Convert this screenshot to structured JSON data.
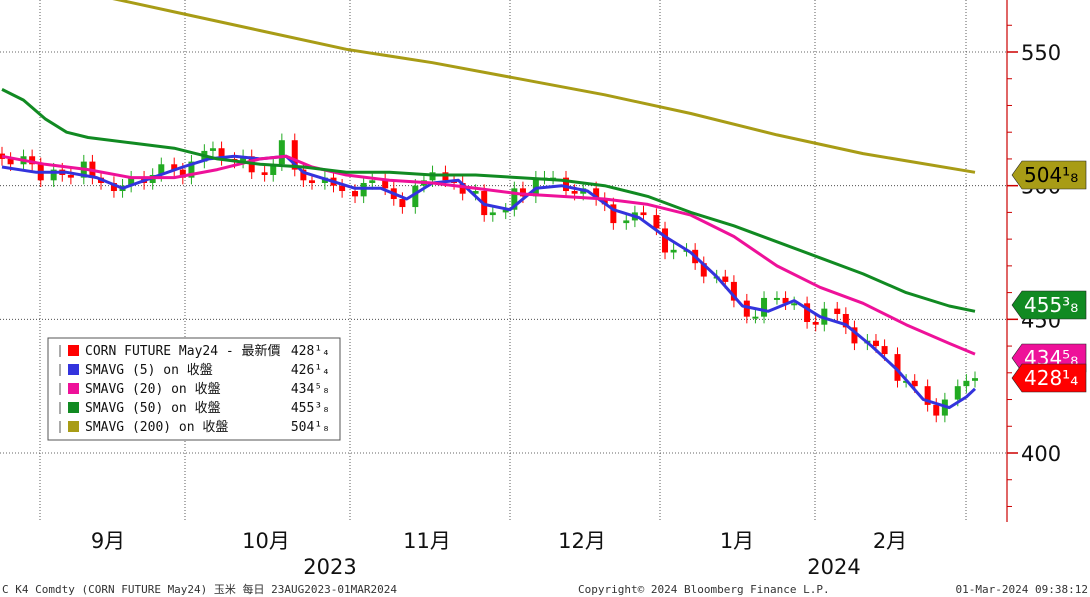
{
  "chart_data": {
    "type": "line",
    "title": "C K4 Comdty (CORN FUTURE May24) 玉米 每日 23AUG2023-01MAR2024",
    "ylim": [
      373,
      568
    ],
    "y_ticks": [
      {
        "value": 550,
        "label": "550"
      },
      {
        "value": 500,
        "label": "500"
      },
      {
        "value": 450,
        "label": "450"
      },
      {
        "value": 400,
        "label": "400"
      }
    ],
    "x_months": [
      {
        "label": "9月",
        "day": 26
      },
      {
        "label": "10月",
        "day": 56
      },
      {
        "label": "11月",
        "day": 87
      },
      {
        "label": "12月",
        "day": 117
      },
      {
        "label": "1月",
        "day": 148
      },
      {
        "label": "2月",
        "day": 179
      }
    ],
    "x_years": [
      {
        "label": "2023",
        "day": 56
      },
      {
        "label": "2024",
        "day": 178
      }
    ],
    "x_range_days": [
      0,
      192
    ],
    "grid": true,
    "legend_position": "bottom-left",
    "legend": [
      {
        "name": "CORN FUTURE May24 - 最新價",
        "value": "428¹₄",
        "color": "#ff0000",
        "first": true
      },
      {
        "name": "SMAVG (5)  on 收盤",
        "value": "426¹₄",
        "color": "#3333dd"
      },
      {
        "name": "SMAVG (20)  on 收盤",
        "value": "434⁵₈",
        "color": "#ee1199"
      },
      {
        "name": "SMAVG (50)  on 收盤",
        "value": "455³₈",
        "color": "#118a22"
      },
      {
        "name": "SMAVG (200)  on 收盤",
        "value": "504¹₈",
        "color": "#a89c16"
      }
    ],
    "badges": [
      {
        "label": "504¹₈",
        "value": 504.125,
        "bg": "#a89c16",
        "fg": "#000000"
      },
      {
        "label": "455³₈",
        "value": 455.375,
        "bg": "#118a22",
        "fg": "#ffffff"
      },
      {
        "label": "434⁵₈",
        "value": 434.625,
        "bg": "#ee1199",
        "fg": "#ffffff"
      },
      {
        "label": "428¹₄",
        "value": 428.25,
        "bg": "#ff0000",
        "fg": "#ffffff"
      }
    ],
    "candles_close": [
      [
        0,
        510
      ],
      [
        2,
        508
      ],
      [
        5,
        511
      ],
      [
        7,
        508
      ],
      [
        9,
        502
      ],
      [
        12,
        506
      ],
      [
        14,
        504
      ],
      [
        16,
        503
      ],
      [
        19,
        509
      ],
      [
        21,
        503
      ],
      [
        23,
        501
      ],
      [
        26,
        498
      ],
      [
        28,
        500
      ],
      [
        30,
        503
      ],
      [
        33,
        501
      ],
      [
        35,
        504
      ],
      [
        37,
        508
      ],
      [
        40,
        506
      ],
      [
        42,
        503
      ],
      [
        44,
        509
      ],
      [
        47,
        513
      ],
      [
        49,
        514
      ],
      [
        51,
        510
      ],
      [
        54,
        509
      ],
      [
        56,
        511
      ],
      [
        58,
        505
      ],
      [
        61,
        504
      ],
      [
        63,
        508
      ],
      [
        65,
        517
      ],
      [
        68,
        506
      ],
      [
        70,
        502
      ],
      [
        72,
        501
      ],
      [
        75,
        503
      ],
      [
        77,
        500
      ],
      [
        79,
        498
      ],
      [
        82,
        496
      ],
      [
        84,
        501
      ],
      [
        86,
        502
      ],
      [
        89,
        499
      ],
      [
        91,
        495
      ],
      [
        93,
        492
      ],
      [
        96,
        500
      ],
      [
        98,
        502
      ],
      [
        100,
        505
      ],
      [
        103,
        502
      ],
      [
        105,
        501
      ],
      [
        107,
        497
      ],
      [
        110,
        498
      ],
      [
        112,
        489
      ],
      [
        114,
        490
      ],
      [
        117,
        491
      ],
      [
        119,
        499
      ],
      [
        121,
        496
      ],
      [
        124,
        503
      ],
      [
        126,
        503
      ],
      [
        128,
        503
      ],
      [
        131,
        498
      ],
      [
        133,
        497
      ],
      [
        135,
        499
      ],
      [
        138,
        495
      ],
      [
        140,
        493
      ],
      [
        142,
        486
      ],
      [
        145,
        487
      ],
      [
        147,
        490
      ],
      [
        149,
        489
      ],
      [
        152,
        484
      ],
      [
        154,
        475
      ],
      [
        156,
        476
      ],
      [
        159,
        476
      ],
      [
        161,
        471
      ],
      [
        163,
        466
      ],
      [
        166,
        466
      ],
      [
        168,
        464
      ],
      [
        170,
        457
      ],
      [
        173,
        451
      ],
      [
        175,
        451
      ],
      [
        177,
        458
      ],
      [
        180,
        458
      ],
      [
        182,
        456
      ],
      [
        184,
        456
      ],
      [
        187,
        449
      ],
      [
        189,
        448
      ],
      [
        191,
        454
      ],
      [
        194,
        452
      ],
      [
        196,
        447
      ],
      [
        198,
        441
      ],
      [
        201,
        442
      ],
      [
        203,
        440
      ],
      [
        205,
        437
      ],
      [
        208,
        427
      ],
      [
        210,
        427
      ],
      [
        212,
        425
      ],
      [
        215,
        418
      ],
      [
        217,
        414
      ],
      [
        219,
        420
      ],
      [
        222,
        425
      ],
      [
        224,
        427
      ],
      [
        226,
        428
      ]
    ],
    "series": [
      {
        "name": "SMAVG (5)",
        "color": "#3333dd",
        "points": [
          [
            0,
            507
          ],
          [
            8,
            505
          ],
          [
            15,
            505
          ],
          [
            22,
            503
          ],
          [
            28,
            499
          ],
          [
            35,
            503
          ],
          [
            42,
            507
          ],
          [
            48,
            510
          ],
          [
            54,
            511
          ],
          [
            60,
            510
          ],
          [
            66,
            511
          ],
          [
            70,
            505
          ],
          [
            76,
            502
          ],
          [
            82,
            499
          ],
          [
            88,
            499
          ],
          [
            94,
            495
          ],
          [
            100,
            501
          ],
          [
            106,
            502
          ],
          [
            112,
            493
          ],
          [
            118,
            491
          ],
          [
            124,
            499
          ],
          [
            130,
            500
          ],
          [
            136,
            498
          ],
          [
            142,
            491
          ],
          [
            148,
            488
          ],
          [
            154,
            481
          ],
          [
            160,
            475
          ],
          [
            166,
            466
          ],
          [
            172,
            455
          ],
          [
            178,
            453
          ],
          [
            184,
            457
          ],
          [
            190,
            451
          ],
          [
            196,
            448
          ],
          [
            202,
            440
          ],
          [
            208,
            431
          ],
          [
            214,
            420
          ],
          [
            220,
            417
          ],
          [
            224,
            421
          ],
          [
            226,
            424
          ]
        ]
      },
      {
        "name": "SMAVG (20)",
        "color": "#ee1199",
        "points": [
          [
            0,
            511
          ],
          [
            10,
            508
          ],
          [
            20,
            506
          ],
          [
            30,
            503
          ],
          [
            40,
            503
          ],
          [
            50,
            506
          ],
          [
            60,
            510
          ],
          [
            66,
            511
          ],
          [
            72,
            507
          ],
          [
            80,
            504
          ],
          [
            90,
            502
          ],
          [
            100,
            501
          ],
          [
            110,
            499
          ],
          [
            120,
            497
          ],
          [
            130,
            496
          ],
          [
            140,
            495
          ],
          [
            150,
            493
          ],
          [
            160,
            489
          ],
          [
            170,
            481
          ],
          [
            180,
            470
          ],
          [
            190,
            462
          ],
          [
            200,
            456
          ],
          [
            210,
            448
          ],
          [
            220,
            441
          ],
          [
            226,
            437
          ]
        ]
      },
      {
        "name": "SMAVG (50)",
        "color": "#118a22",
        "points": [
          [
            0,
            536
          ],
          [
            5,
            532
          ],
          [
            10,
            525
          ],
          [
            15,
            520
          ],
          [
            20,
            518
          ],
          [
            30,
            516
          ],
          [
            40,
            514
          ],
          [
            50,
            510
          ],
          [
            60,
            508
          ],
          [
            70,
            507
          ],
          [
            80,
            505
          ],
          [
            90,
            505
          ],
          [
            100,
            504
          ],
          [
            110,
            504
          ],
          [
            120,
            503
          ],
          [
            130,
            502
          ],
          [
            140,
            500
          ],
          [
            150,
            496
          ],
          [
            160,
            490
          ],
          [
            170,
            485
          ],
          [
            180,
            479
          ],
          [
            190,
            473
          ],
          [
            200,
            467
          ],
          [
            210,
            460
          ],
          [
            220,
            455
          ],
          [
            226,
            453
          ]
        ]
      },
      {
        "name": "SMAVG (200)",
        "color": "#a89c16",
        "points": [
          [
            0,
            580
          ],
          [
            20,
            572
          ],
          [
            40,
            565
          ],
          [
            60,
            558
          ],
          [
            80,
            551
          ],
          [
            100,
            546
          ],
          [
            120,
            540
          ],
          [
            140,
            534
          ],
          [
            160,
            527
          ],
          [
            180,
            519
          ],
          [
            200,
            512
          ],
          [
            226,
            505
          ]
        ]
      }
    ]
  },
  "footer": {
    "left": "C K4 Comdty (CORN FUTURE     May24) 玉米  每日 23AUG2023-01MAR2024",
    "center": "Copyright© 2024 Bloomberg Finance L.P.",
    "right": "01-Mar-2024 09:38:12"
  }
}
